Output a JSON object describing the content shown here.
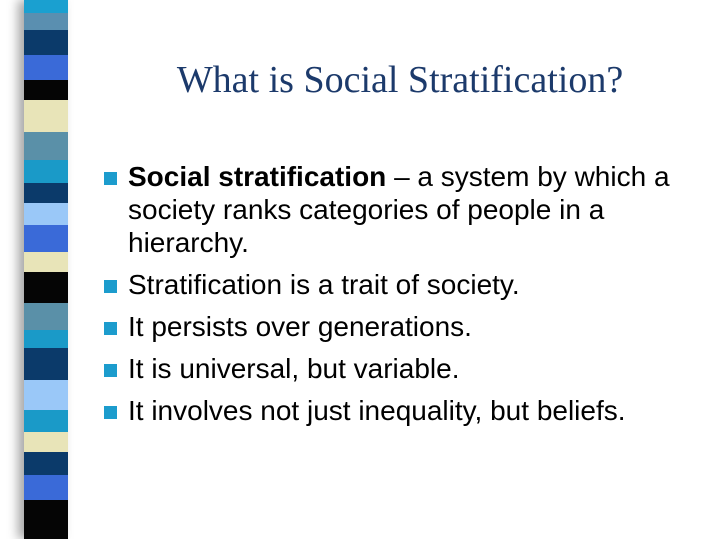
{
  "slide": {
    "title": "What is Social Stratification?",
    "bullets": [
      {
        "term": "Social stratification",
        "text": " – a system by which a society ranks categories of people in a hierarchy."
      },
      {
        "term": "",
        "text": "Stratification is a trait of society."
      },
      {
        "term": "",
        "text": "It persists over generations."
      },
      {
        "term": "",
        "text": "It is universal, but variable."
      },
      {
        "term": "",
        "text": "It involves not just inequality, but beliefs."
      }
    ],
    "colors": {
      "title": "#1c3a6b",
      "bullet": "#1c9ccd"
    }
  },
  "stripe_colors": [
    "#1aa0d0",
    "#5a8fb0",
    "#0b3a6a",
    "#3a6ad8",
    "#050505",
    "#e8e4b8",
    "#5a90a8",
    "#1a9ac8",
    "#0b3a6a",
    "#9ac8f8",
    "#3a6ad8",
    "#e8e4b8",
    "#050505",
    "#5a90a8",
    "#1a9ac8",
    "#0b3a6a",
    "#9ac8f8",
    "#1a9ac8",
    "#e8e4b8",
    "#0b3a6a",
    "#3a6ad8",
    "#050505"
  ]
}
